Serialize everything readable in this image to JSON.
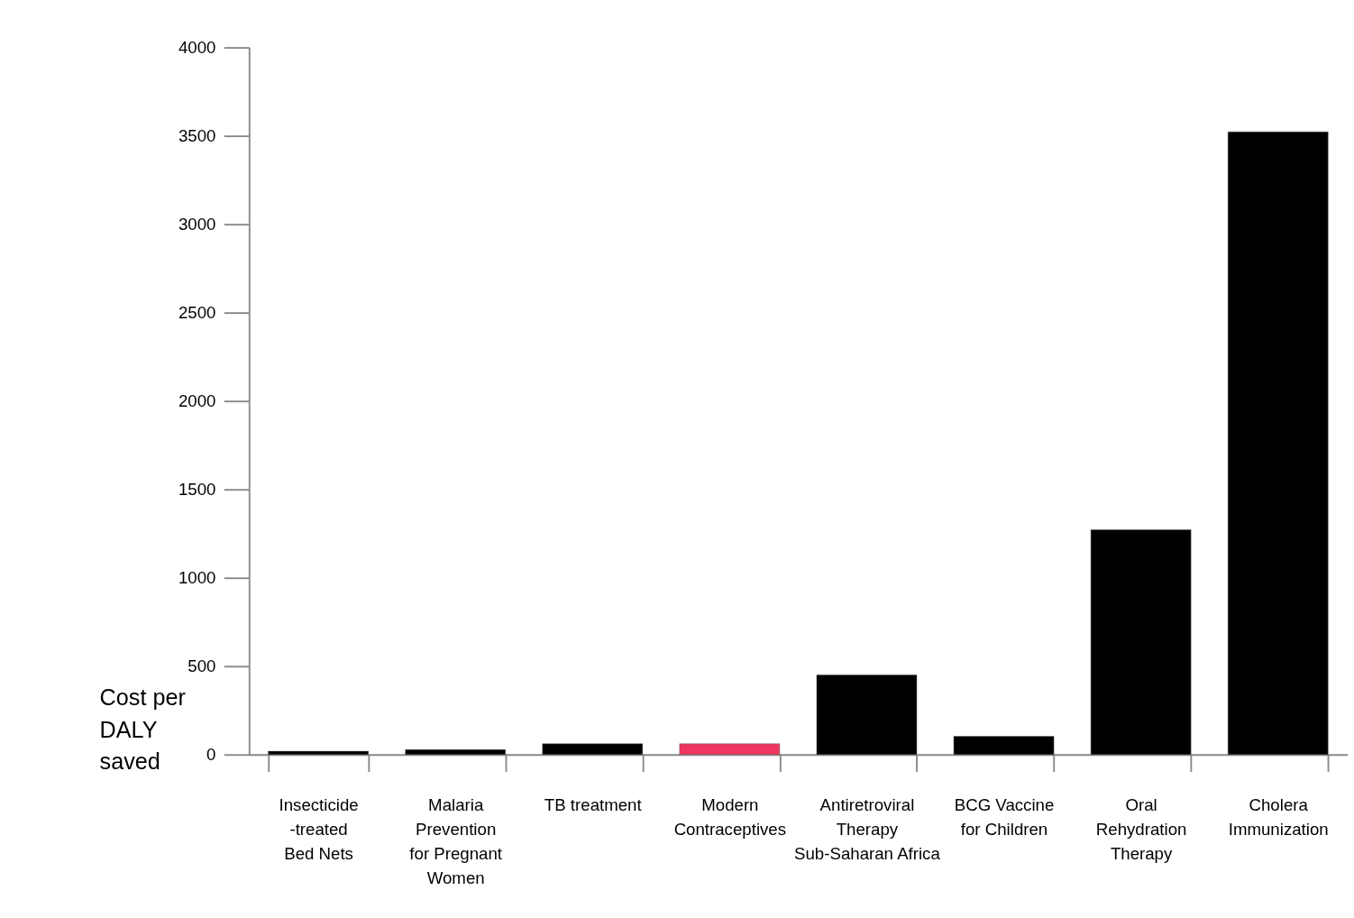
{
  "chart_data": {
    "type": "bar",
    "ylabel": "Cost per\nDALY\nsaved",
    "categories": [
      "Insecticide\n-treated\nBed Nets",
      "Malaria\nPrevention\nfor Pregnant\nWomen",
      "TB treatment",
      "Modern\nContraceptives",
      "Antiretroviral\nTherapy\nSub-Saharan Africa",
      "BCG Vaccine\nfor Children",
      "Oral\nRehydration\nTherapy",
      "Cholera\nImmunization"
    ],
    "values": [
      19,
      28,
      61,
      61,
      451,
      103,
      1272,
      3523
    ],
    "colors": [
      "#000000",
      "#000000",
      "#000000",
      "#ee3560",
      "#000000",
      "#000000",
      "#000000",
      "#000000"
    ],
    "ylim": [
      0,
      4000
    ],
    "yticks": [
      0,
      500,
      1000,
      1500,
      2000,
      2500,
      3000,
      3500,
      4000
    ],
    "grid": false,
    "legend": false
  }
}
